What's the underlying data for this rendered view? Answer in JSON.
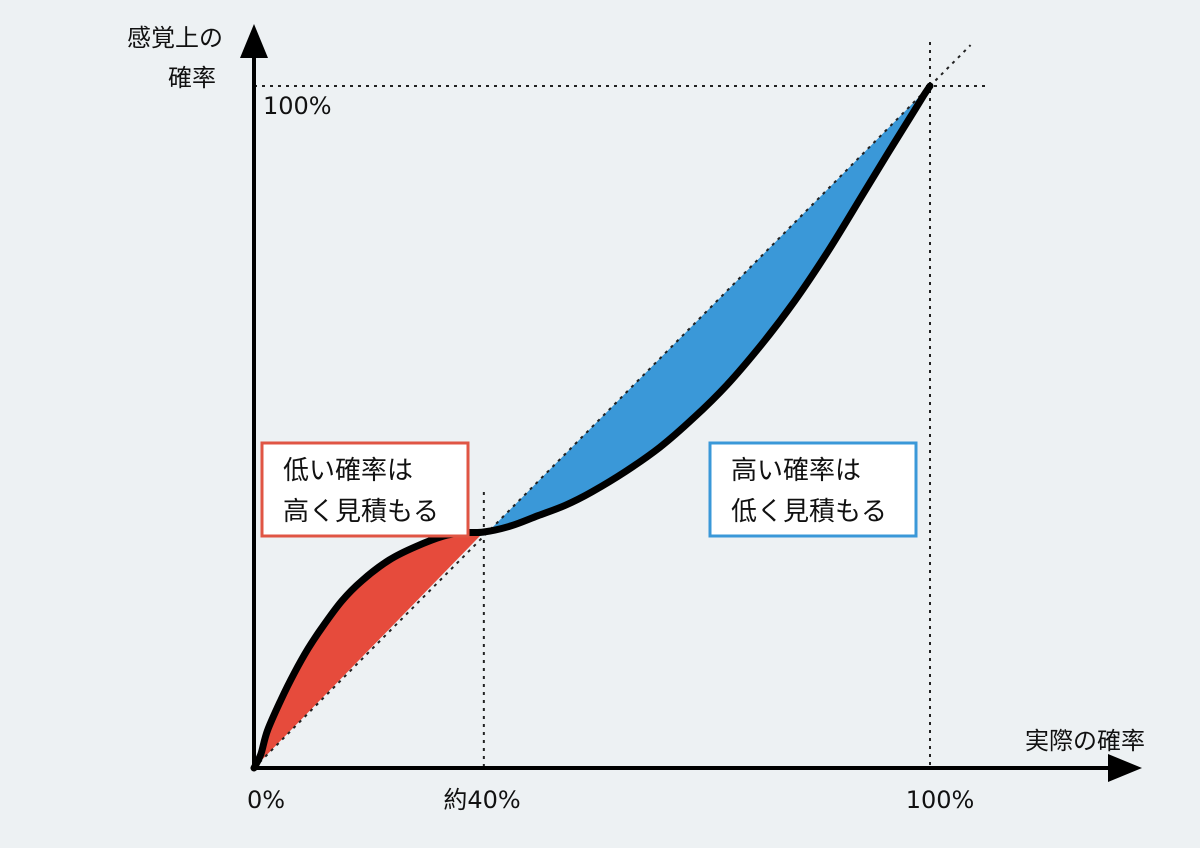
{
  "chart_data": {
    "type": "line",
    "title": "",
    "xlabel": "実際の確率",
    "ylabel_lines": [
      "感覚上の",
      "確率"
    ],
    "xlim": [
      0,
      100
    ],
    "ylim": [
      0,
      100
    ],
    "x_ticks": [
      {
        "value": 0,
        "label": "0%"
      },
      {
        "value": 34,
        "label": "約40%"
      },
      {
        "value": 100,
        "label": "100%"
      }
    ],
    "y_ticks": [
      {
        "value": 100,
        "label": "100%"
      }
    ],
    "reference_line": {
      "slope": 1
    },
    "crossover": 34,
    "series": [
      {
        "x": [
          0,
          1,
          2,
          4,
          6,
          8,
          10,
          13,
          16,
          20,
          24,
          28,
          31,
          34,
          38,
          42,
          46,
          50,
          55,
          60,
          65,
          70,
          75,
          80,
          85,
          90,
          94,
          97,
          99,
          100
        ],
        "y": [
          0,
          2,
          5.5,
          10,
          14,
          17.5,
          20.5,
          24.5,
          27.5,
          30.5,
          32.5,
          34,
          34.5,
          34.6,
          35.5,
          37,
          38.5,
          40.5,
          43.5,
          47,
          51.3,
          56.2,
          62,
          68.5,
          75.9,
          84,
          90.5,
          95.3,
          98.5,
          100
        ]
      }
    ],
    "regions": [
      {
        "range": [
          0,
          34
        ],
        "color": "#e64b3c",
        "label_lines": [
          "低い確率は",
          "高く見積もる"
        ]
      },
      {
        "range": [
          34,
          100
        ],
        "color": "#3a98d8",
        "label_lines": [
          "高い確率は",
          "低く見積もる"
        ]
      }
    ]
  }
}
